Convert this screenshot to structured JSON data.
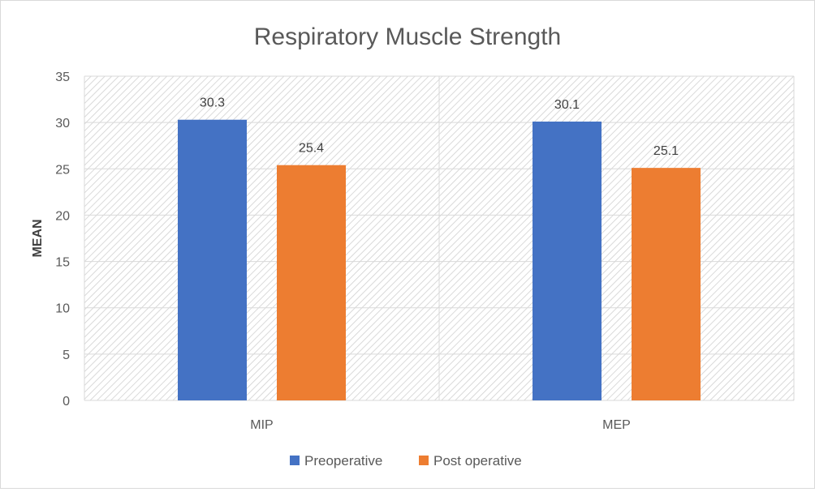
{
  "chart_data": {
    "type": "bar",
    "title": "Respiratory Muscle Strength",
    "xlabel": "",
    "ylabel": "MEAN",
    "categories": [
      "MIP",
      "MEP"
    ],
    "series": [
      {
        "name": "Preoperative",
        "values": [
          30.3,
          30.1
        ],
        "color": "#4472c4"
      },
      {
        "name": "Post operative",
        "values": [
          25.4,
          25.1
        ],
        "color": "#ed7d31"
      }
    ],
    "ylim": [
      0,
      35
    ],
    "yticks": [
      0,
      5,
      10,
      15,
      20,
      25,
      30,
      35
    ],
    "grid": true,
    "legend_position": "bottom",
    "data_labels": true
  }
}
